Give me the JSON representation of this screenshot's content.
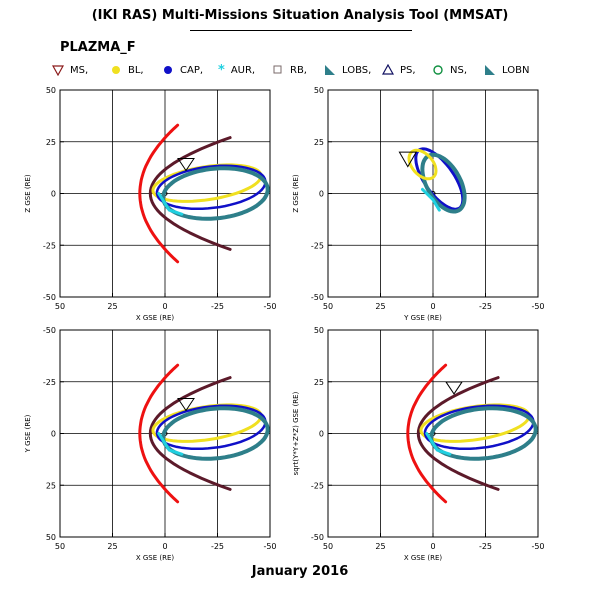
{
  "title": "(IKI RAS) Multi-Missions Situation Analysis Tool (MMSAT)",
  "dataset": "PLAZMA_F",
  "footer": "January 2016",
  "legend": [
    {
      "label": "MS,",
      "icon": "triangle-down-icon",
      "color": "#8b1a1a"
    },
    {
      "label": "BL,",
      "icon": "circle-icon",
      "color": "#f0e020"
    },
    {
      "label": "CAP,",
      "icon": "circle-icon",
      "color": "#1010c8"
    },
    {
      "label": "AUR,",
      "icon": "asterisk-icon",
      "color": "#20d0e0"
    },
    {
      "label": "RB,",
      "icon": "square-icon",
      "color": "#7a6a6a"
    },
    {
      "label": "LOBS,",
      "icon": "triangle-filled-icon",
      "color": "#2e7f8a"
    },
    {
      "label": "PS,",
      "icon": "triangle-up-icon",
      "color": "#101060"
    },
    {
      "label": "NS,",
      "icon": "circle-open-icon",
      "color": "#109040"
    },
    {
      "label": "LOBN",
      "icon": "triangle-filled-icon",
      "color": "#2e7f8a"
    }
  ],
  "chart_data": [
    {
      "type": "scatter",
      "xlabel": "X GSE (RE)",
      "ylabel": "Z GSE (RE)",
      "xlim": [
        50,
        -50
      ],
      "ylim": [
        -50,
        50
      ],
      "xticks": [
        "50",
        "25",
        "0",
        "-25",
        "-50"
      ],
      "yticks": [
        "50",
        "25",
        "0",
        "-25",
        "-50"
      ],
      "grid": true
    },
    {
      "type": "scatter",
      "xlabel": "Y GSE (RE)",
      "ylabel": "Z GSE (RE)",
      "xlim": [
        50,
        -50
      ],
      "ylim": [
        -50,
        50
      ],
      "xticks": [
        "50",
        "25",
        "0",
        "-25",
        "-50"
      ],
      "yticks": [
        "50",
        "25",
        "0",
        "-25",
        "-50"
      ],
      "grid": true
    },
    {
      "type": "scatter",
      "xlabel": "X GSE (RE)",
      "ylabel": "Y GSE (RE)",
      "xlim": [
        50,
        -50
      ],
      "ylim": [
        50,
        -50
      ],
      "xticks": [
        "50",
        "25",
        "0",
        "-25",
        "-50"
      ],
      "yticks": [
        "-50",
        "-25",
        "0",
        "25",
        "50"
      ],
      "grid": true
    },
    {
      "type": "scatter",
      "xlabel": "X GSE (RE)",
      "ylabel": "sqrt(Y*Y+Z*Z) GSE (RE)",
      "xlim": [
        50,
        -50
      ],
      "ylim": [
        -50,
        50
      ],
      "xticks": [
        "50",
        "25",
        "0",
        "-25",
        "-50"
      ],
      "yticks": [
        "50",
        "25",
        "0",
        "-25",
        "-50"
      ],
      "grid": true
    }
  ]
}
